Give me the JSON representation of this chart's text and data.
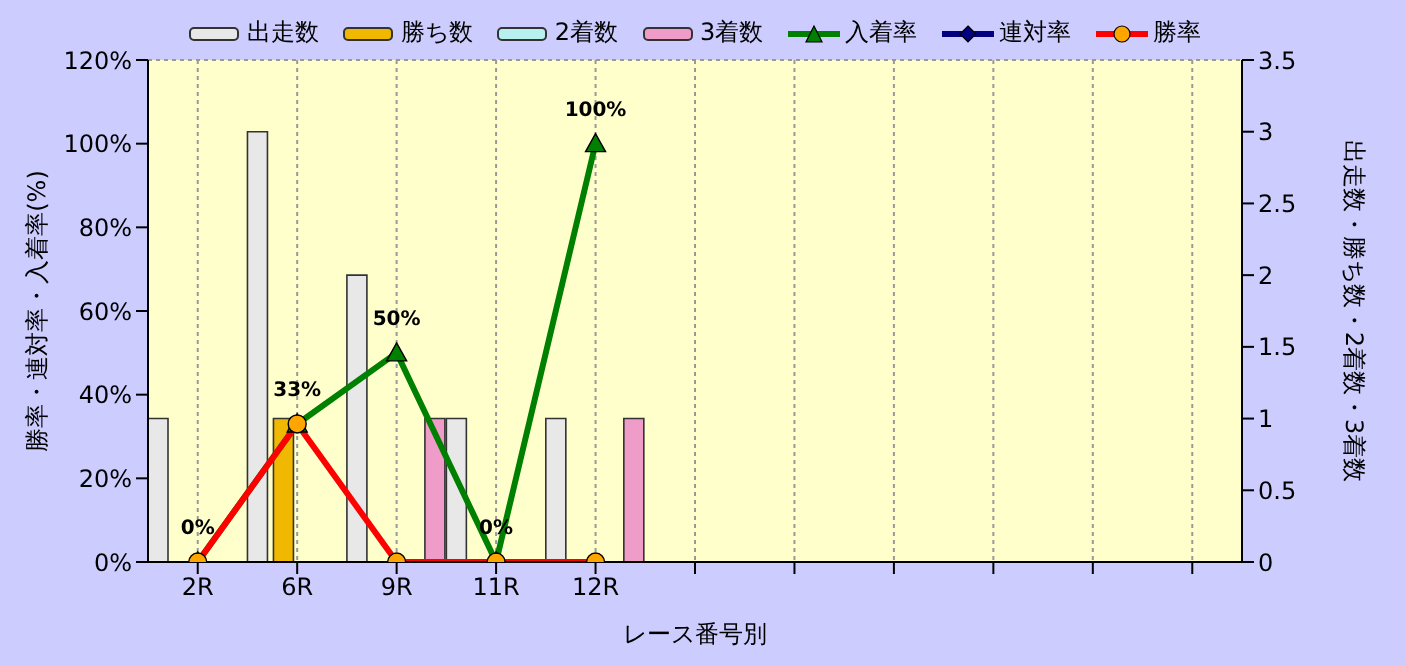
{
  "chart_data": {
    "type": "bar",
    "xlabel": "レース番号別",
    "ylabel": "勝率・連対率・入着率(%)",
    "y2label": "出走数・勝ち数・2着数・3着数",
    "categories": [
      "2R",
      "6R",
      "9R",
      "11R",
      "12R",
      null,
      null,
      null,
      null,
      null,
      null
    ],
    "series": [
      {
        "name": "出走数",
        "axis": "y2",
        "color": "#e8e8e8",
        "values": [
          1,
          3,
          2,
          1,
          1,
          null,
          null,
          null,
          null,
          null,
          null
        ]
      },
      {
        "name": "勝ち数",
        "axis": "y2",
        "color": "#f0b800",
        "values": [
          0,
          1,
          0,
          0,
          0,
          null,
          null,
          null,
          null,
          null,
          null
        ]
      },
      {
        "name": "2着数",
        "axis": "y2",
        "color": "#b8f0f0",
        "values": [
          0,
          0,
          0,
          0,
          0,
          null,
          null,
          null,
          null,
          null,
          null
        ]
      },
      {
        "name": "3着数",
        "axis": "y2",
        "color": "#f09cc8",
        "values": [
          0,
          0,
          1,
          0,
          1,
          null,
          null,
          null,
          null,
          null,
          null
        ]
      },
      {
        "name": "入着率",
        "type": "line",
        "axis": "y",
        "color": "#008000",
        "marker": "triangle",
        "values": [
          0,
          33,
          50,
          0,
          100,
          null,
          null,
          null,
          null,
          null,
          null
        ],
        "value_labels": [
          "0%",
          "33%",
          "50%",
          "0%",
          "100%",
          null,
          null,
          null,
          null,
          null,
          null
        ]
      },
      {
        "name": "連対率",
        "type": "line",
        "axis": "y",
        "color": "#000080",
        "marker": "diamond",
        "values": [
          null,
          null,
          null,
          null,
          null,
          null,
          null,
          null,
          null,
          null,
          null
        ]
      },
      {
        "name": "勝率",
        "type": "line",
        "axis": "y",
        "color": "#ff0000",
        "marker": "circle",
        "values": [
          0,
          33,
          0,
          0,
          0,
          null,
          null,
          null,
          null,
          null,
          null
        ]
      }
    ],
    "ylim": [
      0,
      120
    ],
    "yticks": [
      {
        "value": 0,
        "label": "0%"
      },
      {
        "value": 20,
        "label": "20%"
      },
      {
        "value": 40,
        "label": "40%"
      },
      {
        "value": 60,
        "label": "60%"
      },
      {
        "value": 80,
        "label": "80%"
      },
      {
        "value": 100,
        "label": "100%"
      },
      {
        "value": 120,
        "label": "120%"
      }
    ],
    "y2lim": [
      0,
      3.5
    ],
    "y2ticks": [
      0,
      0.5,
      1,
      1.5,
      2,
      2.5,
      3,
      3.5
    ],
    "grid": true,
    "legend": "top"
  }
}
